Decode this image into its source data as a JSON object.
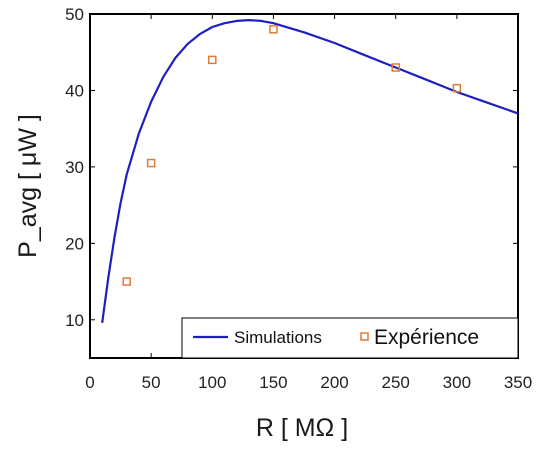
{
  "chart_data": {
    "type": "line",
    "xlabel": "R [ MΩ ]",
    "ylabel": "P_avg [ μW ]",
    "xlim": [
      0,
      350
    ],
    "ylim": [
      5,
      50
    ],
    "xticks": [
      "0",
      "50",
      "100",
      "150",
      "200",
      "250",
      "300",
      "350"
    ],
    "yticks": [
      "10",
      "20",
      "30",
      "40",
      "50"
    ],
    "grid": false,
    "legend_position": "bottom-right",
    "series": [
      {
        "name": "Simulations",
        "kind": "line",
        "color": "#1f1fbf",
        "x": [
          10,
          15,
          20,
          25,
          30,
          40,
          50,
          60,
          70,
          80,
          90,
          100,
          110,
          120,
          130,
          140,
          150,
          175,
          200,
          225,
          250,
          275,
          300,
          325,
          350
        ],
        "y": [
          9.6,
          15.5,
          20.8,
          25.3,
          29.0,
          34.4,
          38.5,
          41.8,
          44.3,
          46.1,
          47.4,
          48.3,
          48.8,
          49.1,
          49.2,
          49.1,
          48.8,
          47.6,
          46.2,
          44.6,
          43.0,
          41.4,
          39.8,
          38.4,
          37.0
        ]
      },
      {
        "name": "Expérience",
        "kind": "scatter",
        "color": "#e07b39",
        "x": [
          30,
          50,
          100,
          150,
          250,
          300
        ],
        "y": [
          15.0,
          30.5,
          44.0,
          48.0,
          43.0,
          40.3
        ]
      }
    ]
  }
}
